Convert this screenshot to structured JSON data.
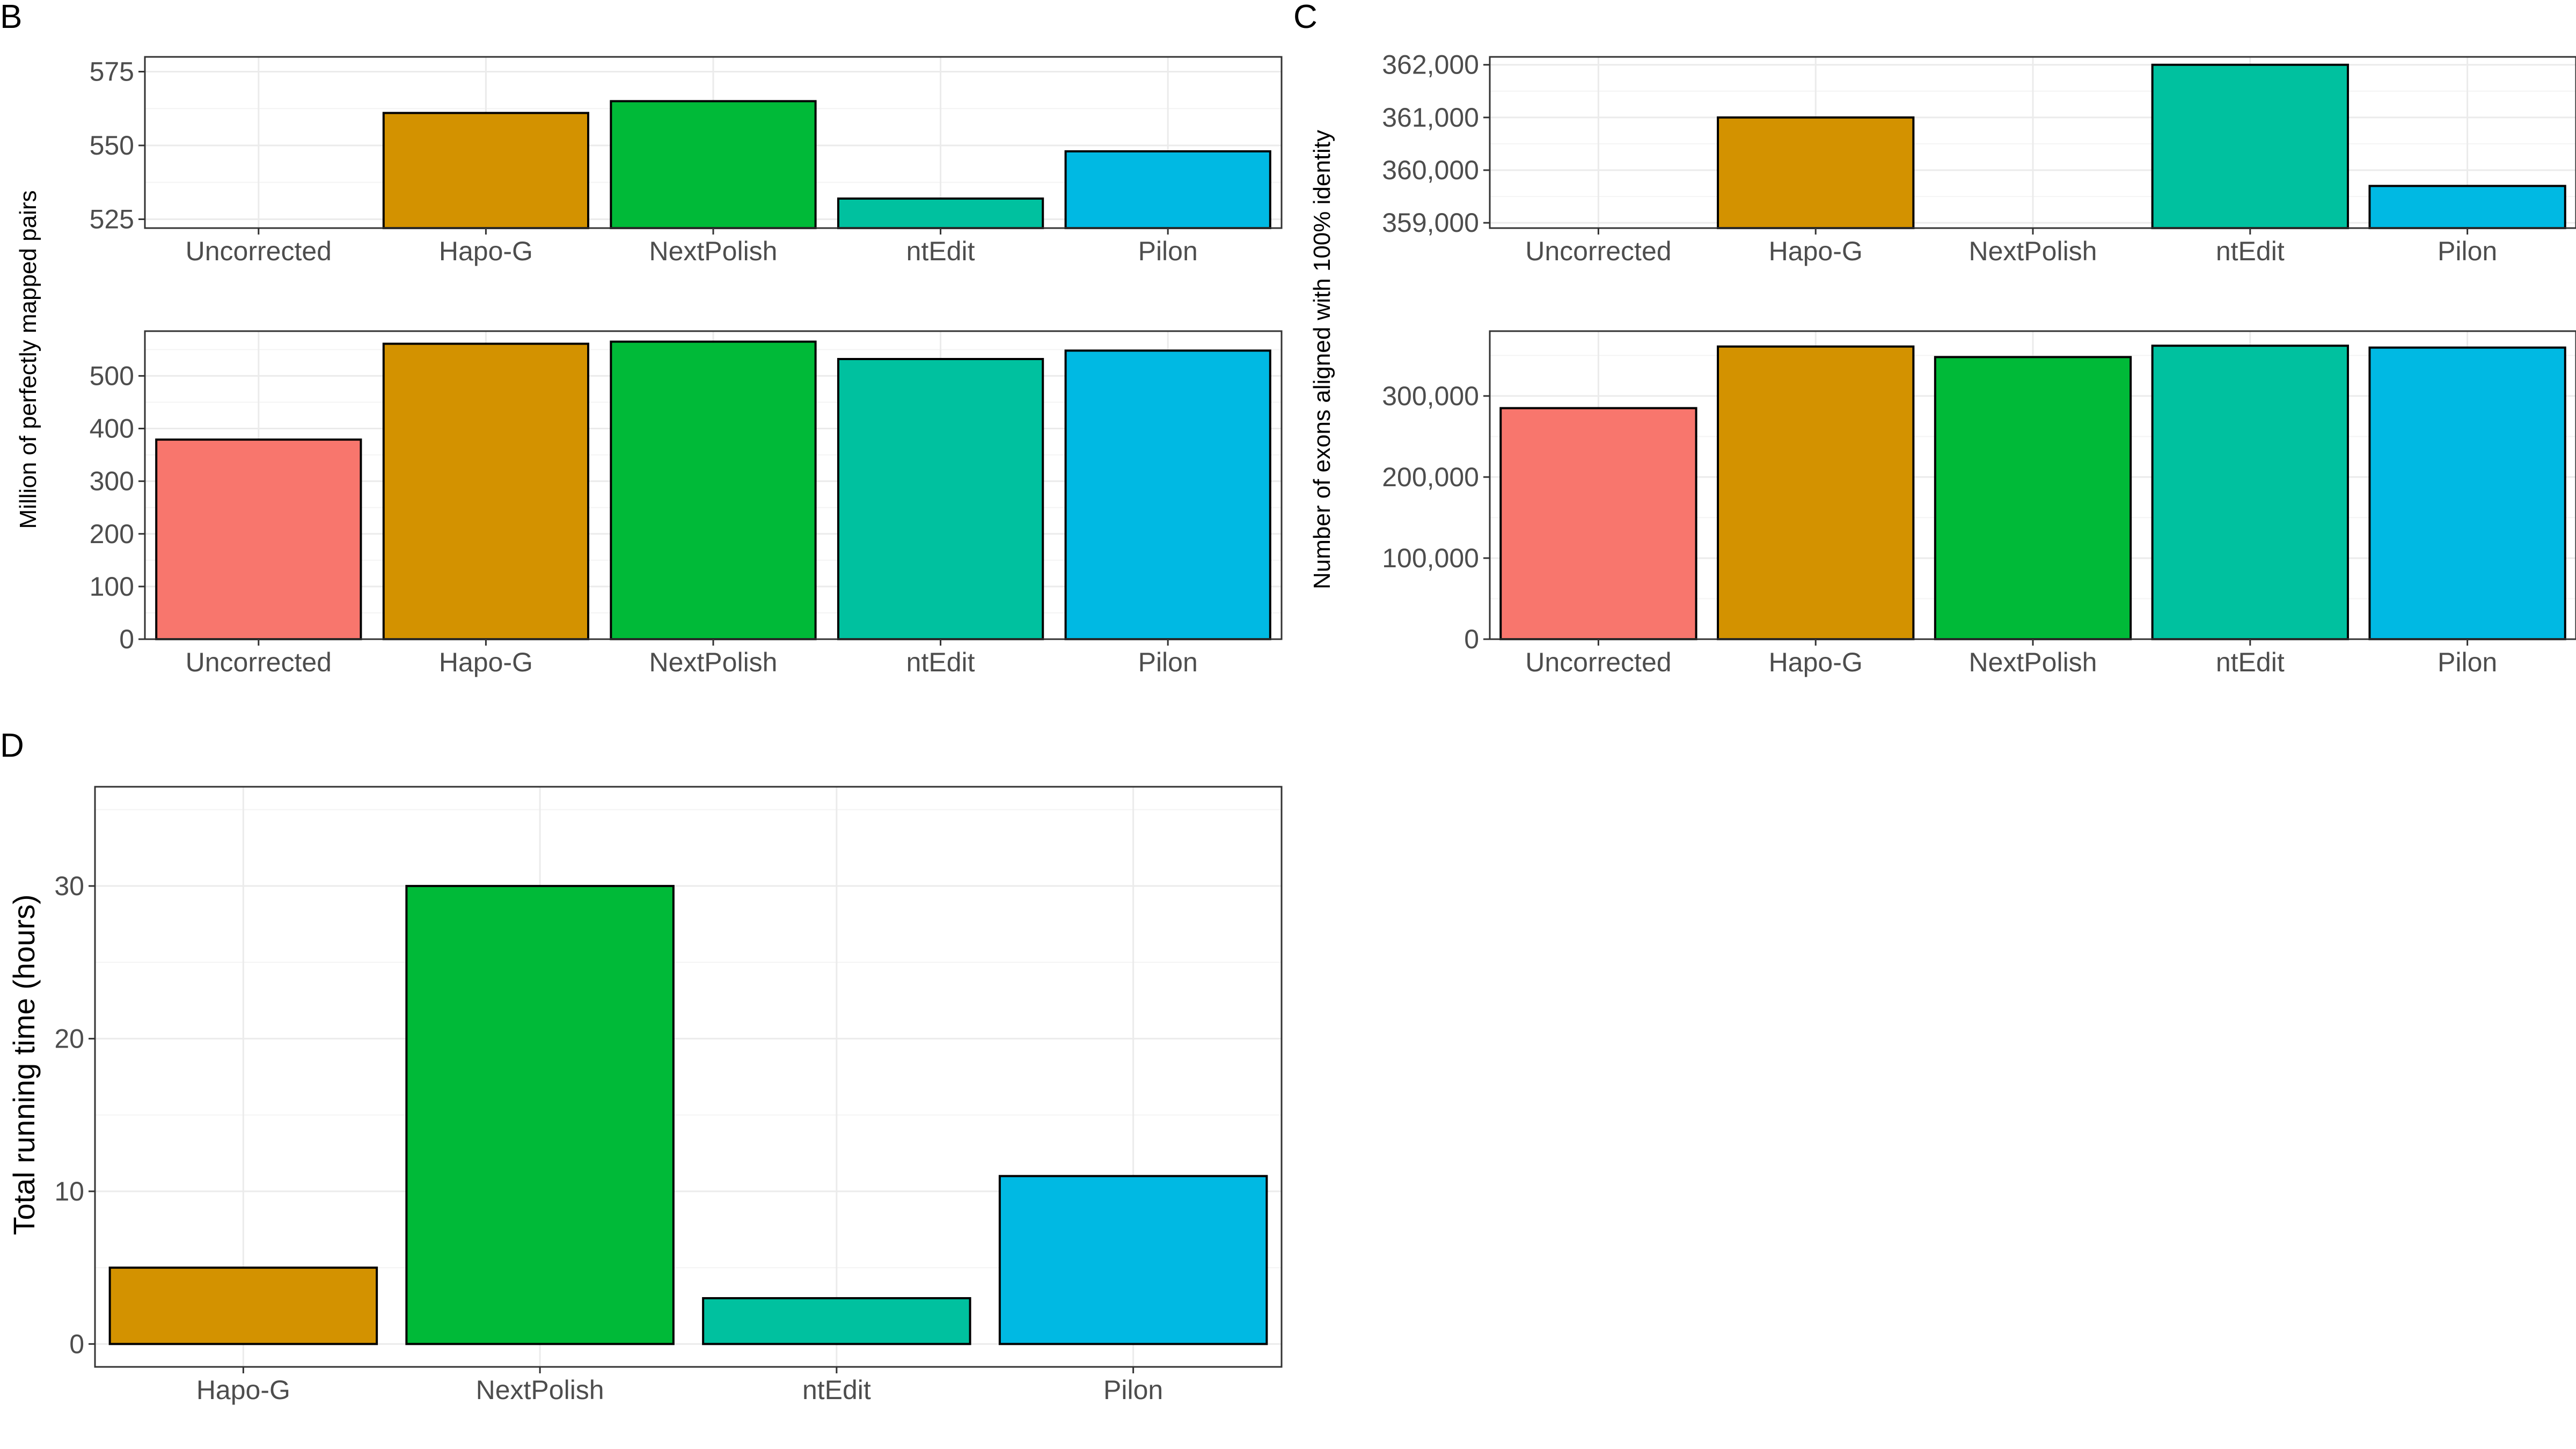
{
  "chart_data": [
    {
      "panel": "B",
      "type": "bar",
      "ylabel": "Million of perfectly mapped pairs",
      "categories": [
        "Uncorrected",
        "Hapo-G",
        "NextPolish",
        "ntEdit",
        "Pilon"
      ],
      "colors": [
        "#F8766D",
        "#D39200",
        "#00BA38",
        "#00C19F",
        "#00B9E3"
      ],
      "values": [
        379,
        561,
        565,
        532,
        548
      ],
      "subplots": [
        {
          "name": "zoomed",
          "ylim": [
            522,
            580
          ],
          "yticks": [
            525,
            550,
            575
          ],
          "tick_labels": [
            "525",
            "550",
            "575"
          ]
        },
        {
          "name": "full",
          "ylim": [
            0,
            585
          ],
          "yticks": [
            0,
            100,
            200,
            300,
            400,
            500
          ],
          "tick_labels": [
            "0",
            "100",
            "200",
            "300",
            "400",
            "500"
          ]
        }
      ],
      "grid": true,
      "legend": "none"
    },
    {
      "panel": "C",
      "type": "bar",
      "ylabel": "Number of exons aligned with 100% identity",
      "categories": [
        "Uncorrected",
        "Hapo-G",
        "NextPolish",
        "ntEdit",
        "Pilon"
      ],
      "colors": [
        "#F8766D",
        "#D39200",
        "#00BA38",
        "#00C19F",
        "#00B9E3"
      ],
      "values": [
        285000,
        361000,
        348000,
        362000,
        359700
      ],
      "subplots": [
        {
          "name": "zoomed",
          "ylim": [
            358900,
            362150
          ],
          "yticks": [
            359000,
            360000,
            361000,
            362000
          ],
          "tick_labels": [
            "359,000",
            "360,000",
            "361,000",
            "362,000"
          ]
        },
        {
          "name": "full",
          "ylim": [
            0,
            380000
          ],
          "yticks": [
            0,
            100000,
            200000,
            300000
          ],
          "tick_labels": [
            "0",
            "100,000",
            "200,000",
            "300,000"
          ]
        }
      ],
      "grid": true,
      "legend": "none"
    },
    {
      "panel": "D",
      "type": "bar",
      "ylabel": "Total running time (hours)",
      "categories": [
        "Hapo-G",
        "NextPolish",
        "ntEdit",
        "Pilon"
      ],
      "colors": [
        "#D39200",
        "#00BA38",
        "#00C19F",
        "#00B9E3"
      ],
      "values": [
        5,
        30,
        3,
        11
      ],
      "ylim": [
        -1.5,
        36.5
      ],
      "yticks": [
        0,
        10,
        20,
        30
      ],
      "tick_labels": [
        "0",
        "10",
        "20",
        "30"
      ],
      "grid": true,
      "legend": "none"
    }
  ]
}
